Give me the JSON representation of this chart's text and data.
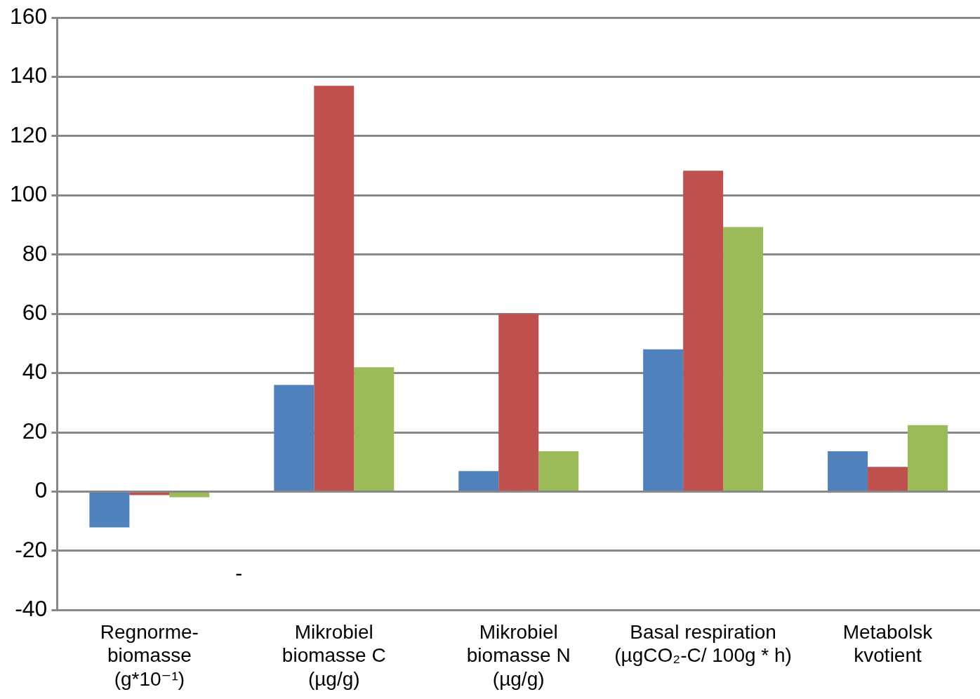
{
  "chart_data": {
    "type": "bar",
    "categories": [
      "Regnorme-\nbiomasse\n(g*10⁻¹)",
      "Mikrobiel\nbiomasse C\n(µg/g)",
      "Mikrobiel\nbiomasse N\n(µg/g)",
      "Basal respiration\n(µgCO₂-C/ 100g * h)",
      "Metabolsk\nkvotient"
    ],
    "series": [
      {
        "color": "#4f81bd",
        "values": [
          -12.1,
          36,
          6.9,
          48,
          13.6
        ]
      },
      {
        "color": "#c0504d",
        "values": [
          -1.2,
          137,
          60,
          108.3,
          8.3
        ]
      },
      {
        "color": "#9bbb59",
        "values": [
          -1.9,
          42,
          13.6,
          89.3,
          22.4
        ]
      }
    ],
    "ylim": [
      -40,
      160
    ],
    "yticks": [
      -40,
      -20,
      0,
      20,
      40,
      60,
      80,
      100,
      120,
      140,
      160
    ],
    "grid": "y",
    "legend": false,
    "annotations": [
      "-"
    ]
  }
}
